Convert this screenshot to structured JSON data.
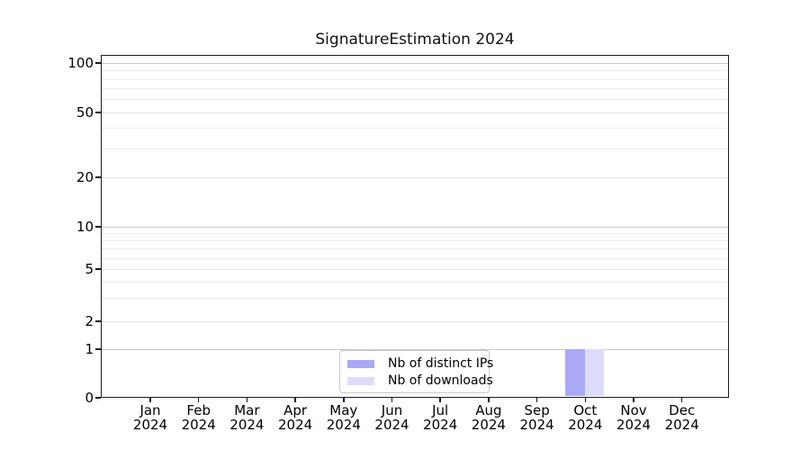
{
  "chart_data": {
    "type": "bar",
    "title": "SignatureEstimation 2024",
    "year_label": "2024",
    "categories": [
      "Jan",
      "Feb",
      "Mar",
      "Apr",
      "May",
      "Jun",
      "Jul",
      "Aug",
      "Sep",
      "Oct",
      "Nov",
      "Dec"
    ],
    "series": [
      {
        "name": "Nb of distinct IPs",
        "color": "#a9a9f6",
        "values": [
          0,
          0,
          0,
          0,
          0,
          0,
          0,
          0,
          0,
          1,
          0,
          0
        ]
      },
      {
        "name": "Nb of downloads",
        "color": "#dcdcfa",
        "values": [
          0,
          0,
          0,
          0,
          0,
          0,
          0,
          0,
          0,
          1,
          0,
          0
        ]
      }
    ],
    "y_ticks": [
      0,
      1,
      2,
      5,
      10,
      20,
      50,
      100
    ],
    "xlabel": "",
    "ylabel": "",
    "ylim": [
      0,
      100
    ],
    "yscale": "log above 1, linear 0-1",
    "grid": true,
    "legend_position": "bottom-center"
  },
  "colors": {
    "bar_distinct_ips": "#a9a9f6",
    "bar_downloads": "#dcdcfa",
    "grid_minor": "#ececec",
    "grid_major": "#c6c6c6",
    "axis": "#1a1a1a"
  }
}
